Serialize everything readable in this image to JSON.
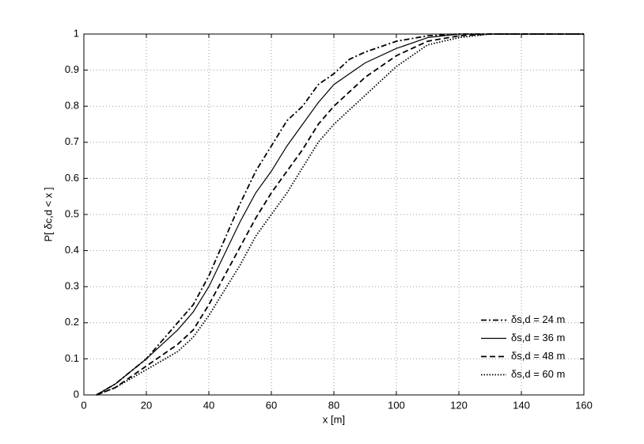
{
  "chart_data": {
    "type": "line",
    "xlabel": "x [m]",
    "ylabel": "P[ δc,d < x ]",
    "x": [
      4,
      10,
      20,
      30,
      35,
      40,
      45,
      50,
      55,
      60,
      65,
      70,
      75,
      80,
      85,
      90,
      100,
      110,
      120,
      130,
      160
    ],
    "series": [
      {
        "name": "δs,d = 24 m",
        "color": "#000000",
        "dash": "dashdot",
        "values": [
          0,
          0.03,
          0.1,
          0.2,
          0.25,
          0.33,
          0.43,
          0.53,
          0.62,
          0.69,
          0.76,
          0.8,
          0.86,
          0.89,
          0.93,
          0.95,
          0.98,
          0.995,
          1,
          1,
          1
        ]
      },
      {
        "name": "δs,d = 36 m",
        "color": "#000000",
        "dash": "solid",
        "values": [
          0,
          0.03,
          0.1,
          0.18,
          0.23,
          0.3,
          0.39,
          0.48,
          0.56,
          0.62,
          0.69,
          0.75,
          0.81,
          0.86,
          0.89,
          0.92,
          0.96,
          0.99,
          1,
          1,
          1
        ]
      },
      {
        "name": "δs,d = 48 m",
        "color": "#000000",
        "dash": "dashed",
        "values": [
          0,
          0.02,
          0.08,
          0.14,
          0.18,
          0.25,
          0.33,
          0.41,
          0.49,
          0.56,
          0.62,
          0.68,
          0.75,
          0.8,
          0.84,
          0.88,
          0.94,
          0.98,
          0.995,
          1,
          1
        ]
      },
      {
        "name": "δs,d = 60 m",
        "color": "#000000",
        "dash": "dotted",
        "values": [
          0,
          0.02,
          0.07,
          0.12,
          0.16,
          0.22,
          0.29,
          0.36,
          0.44,
          0.5,
          0.56,
          0.63,
          0.7,
          0.75,
          0.79,
          0.83,
          0.91,
          0.97,
          0.99,
          1,
          1
        ]
      }
    ],
    "xlim": [
      0,
      160
    ],
    "xticks": [
      0,
      20,
      40,
      60,
      80,
      100,
      120,
      140,
      160
    ],
    "ylim": [
      0,
      1
    ],
    "yticks": [
      0,
      0.1,
      0.2,
      0.3,
      0.4,
      0.5,
      0.6,
      0.7,
      0.8,
      0.9,
      1
    ],
    "grid": true,
    "legend": "lower right"
  }
}
